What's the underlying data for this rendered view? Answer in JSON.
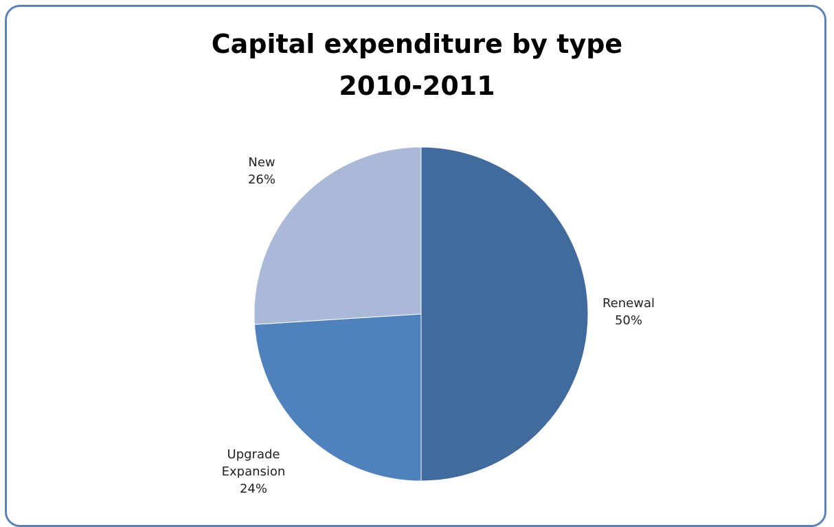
{
  "chart_data": {
    "type": "pie",
    "title": [
      "Capital expenditure by type",
      "2010-2011"
    ],
    "slices": [
      {
        "label": [
          "Renewal"
        ],
        "percent_label": "50%",
        "value": 50,
        "color": "#416b9c"
      },
      {
        "label": [
          "Upgrade",
          "Expansion"
        ],
        "percent_label": "24%",
        "value": 24,
        "color": "#4f81bd"
      },
      {
        "label": [
          "New"
        ],
        "percent_label": "26%",
        "value": 26,
        "color": "#aab9d7"
      }
    ],
    "start_angle_deg": 0,
    "direction": "clockwise",
    "legend": "none"
  }
}
